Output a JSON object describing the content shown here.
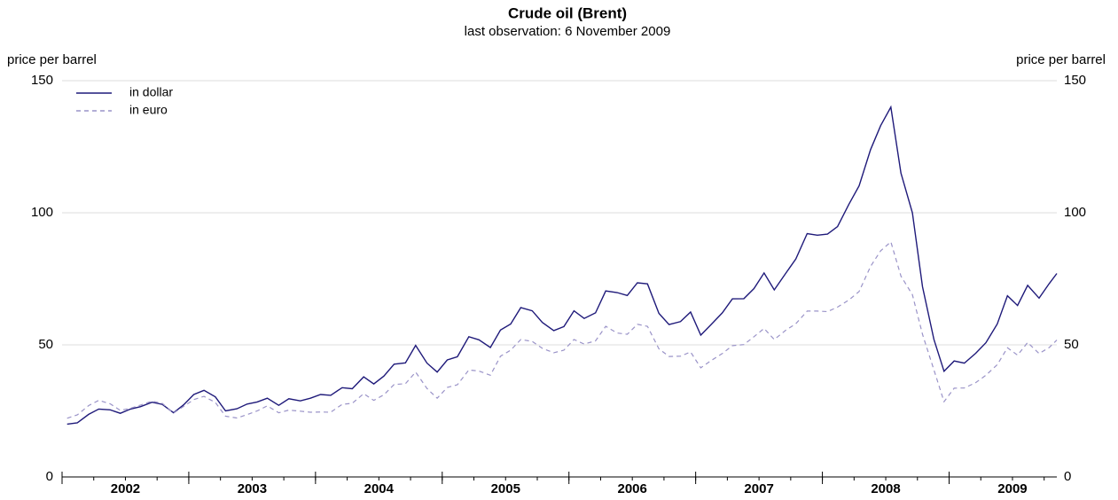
{
  "chart_data": {
    "type": "line",
    "title": "Crude oil (Brent)",
    "subtitle": "last observation: 6 November 2009",
    "y_label": "price per barrel",
    "y2_label": "price per barrel",
    "x": [
      2002.04,
      2002.12,
      2002.21,
      2002.29,
      2002.38,
      2002.46,
      2002.54,
      2002.62,
      2002.71,
      2002.79,
      2002.88,
      2002.96,
      2003.04,
      2003.12,
      2003.21,
      2003.29,
      2003.38,
      2003.46,
      2003.54,
      2003.62,
      2003.71,
      2003.79,
      2003.88,
      2003.96,
      2004.04,
      2004.12,
      2004.21,
      2004.29,
      2004.38,
      2004.46,
      2004.54,
      2004.62,
      2004.71,
      2004.79,
      2004.88,
      2004.96,
      2005.04,
      2005.12,
      2005.21,
      2005.29,
      2005.38,
      2005.46,
      2005.54,
      2005.62,
      2005.71,
      2005.79,
      2005.88,
      2005.96,
      2006.04,
      2006.12,
      2006.21,
      2006.29,
      2006.38,
      2006.46,
      2006.54,
      2006.62,
      2006.71,
      2006.79,
      2006.88,
      2006.96,
      2007.04,
      2007.12,
      2007.21,
      2007.29,
      2007.38,
      2007.46,
      2007.54,
      2007.62,
      2007.71,
      2007.79,
      2007.88,
      2007.96,
      2008.04,
      2008.12,
      2008.21,
      2008.29,
      2008.38,
      2008.46,
      2008.54,
      2008.62,
      2008.71,
      2008.79,
      2008.88,
      2008.96,
      2009.04,
      2009.12,
      2009.21,
      2009.29,
      2009.38,
      2009.46,
      2009.54,
      2009.62,
      2009.71,
      2009.79,
      2009.85
    ],
    "series": [
      {
        "name": "in dollar",
        "color": "#1f1a7a",
        "dash": false,
        "values": [
          20.0,
          20.5,
          23.7,
          25.7,
          25.4,
          24.1,
          25.7,
          26.6,
          28.3,
          27.5,
          24.3,
          27.3,
          31.2,
          32.8,
          30.3,
          25.0,
          25.8,
          27.6,
          28.4,
          29.8,
          27.1,
          29.6,
          28.8,
          29.8,
          31.2,
          30.9,
          33.8,
          33.4,
          37.9,
          35.2,
          38.2,
          42.7,
          43.2,
          49.8,
          43.1,
          39.7,
          44.3,
          45.5,
          53.1,
          51.9,
          49.0,
          55.6,
          57.9,
          64.1,
          62.9,
          58.5,
          55.4,
          56.9,
          62.9,
          60.0,
          62.1,
          70.4,
          69.8,
          68.7,
          73.5,
          73.1,
          61.9,
          57.7,
          58.8,
          62.4,
          53.7,
          57.6,
          62.1,
          67.4,
          67.5,
          71.3,
          77.2,
          70.8,
          77.0,
          82.5,
          92.1,
          91.5,
          91.9,
          94.8,
          103.3,
          110.2,
          123.9,
          133.0,
          140.0,
          115.0,
          100.0,
          72.0,
          52.0,
          40.0,
          43.9,
          43.1,
          46.8,
          50.8,
          57.9,
          68.6,
          64.9,
          72.5,
          67.7,
          73.2,
          77.0
        ]
      },
      {
        "name": "in euro",
        "color": "#9a93c8",
        "dash": true,
        "values": [
          22.2,
          23.5,
          27.0,
          29.0,
          27.7,
          25.2,
          26.0,
          27.2,
          28.7,
          27.9,
          24.2,
          26.7,
          29.3,
          30.5,
          28.2,
          23.0,
          22.3,
          23.6,
          25.0,
          26.9,
          24.3,
          25.3,
          24.9,
          24.5,
          24.6,
          24.5,
          27.5,
          27.9,
          31.5,
          29.0,
          31.1,
          35.0,
          35.3,
          39.7,
          33.5,
          29.8,
          33.9,
          34.9,
          40.5,
          40.1,
          38.5,
          45.7,
          48.0,
          52.0,
          51.3,
          48.7,
          47.0,
          48.0,
          52.0,
          50.3,
          51.5,
          57.0,
          54.5,
          54.0,
          57.8,
          57.0,
          48.5,
          45.6,
          45.7,
          47.3,
          41.3,
          44.0,
          46.7,
          49.7,
          50.1,
          53.1,
          56.2,
          52.0,
          55.5,
          58.0,
          62.8,
          62.8,
          62.6,
          64.3,
          67.0,
          70.2,
          79.7,
          85.6,
          89.0,
          76.0,
          69.0,
          54.0,
          40.5,
          28.5,
          33.6,
          33.7,
          35.7,
          38.5,
          42.5,
          48.9,
          46.1,
          50.9,
          46.7,
          49.0,
          51.8
        ]
      }
    ],
    "xlim": [
      2002,
      2009.85
    ],
    "xticks": [
      2002,
      2003,
      2004,
      2005,
      2006,
      2007,
      2008,
      2009
    ],
    "ylim": [
      0,
      150
    ],
    "yticks": [
      0,
      50,
      100,
      150
    ],
    "grid": true,
    "legend": "upper left"
  }
}
